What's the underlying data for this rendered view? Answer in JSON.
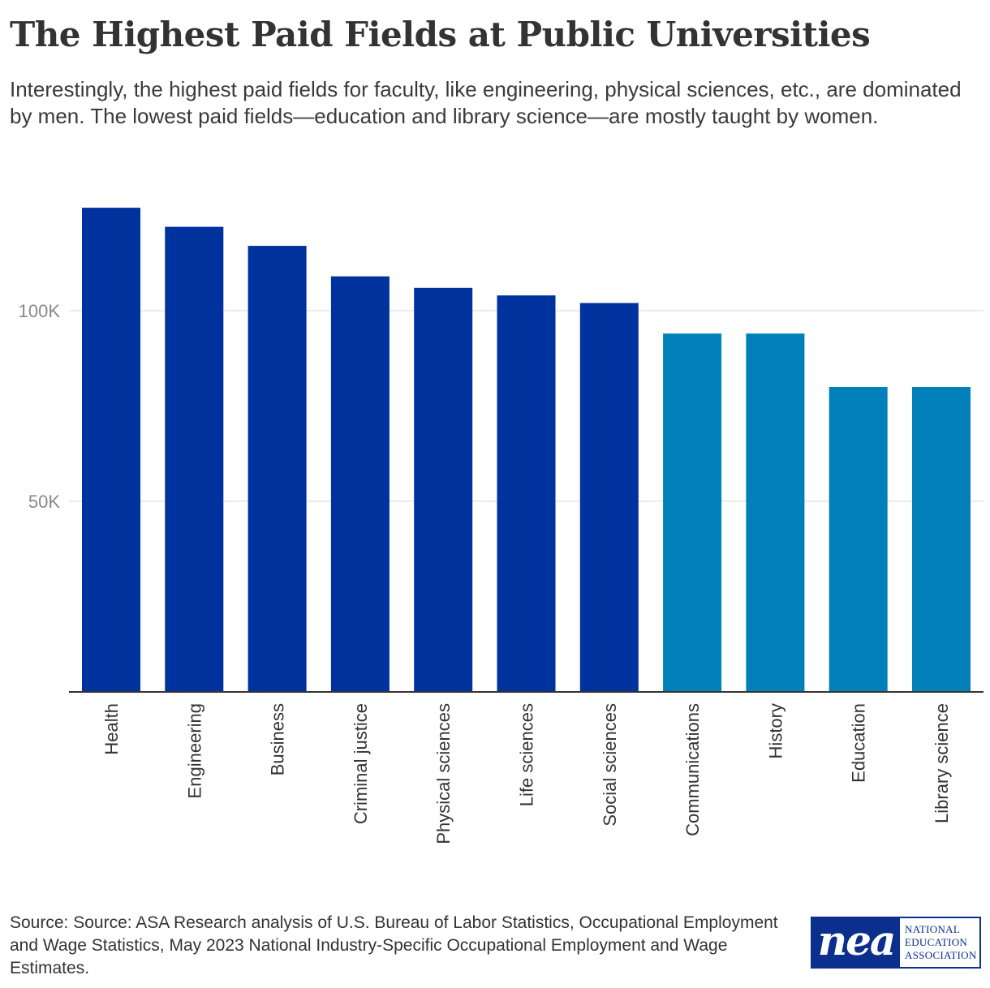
{
  "title": "The Highest Paid Fields at Public Universities",
  "subtitle": "Interestingly, the highest paid fields for faculty, like engineering, physical sciences, etc., are dominated by men. The lowest paid fields—education and library science—are mostly taught by women.",
  "source": "Source: Source: ASA Research analysis of U.S. Bureau of Labor Statistics, Occupational Employment and Wage Statistics, May 2023 National Industry-Specific Occupational Employment and Wage Estimates.",
  "logo": {
    "mark": "nea",
    "line1": "NATIONAL",
    "line2": "EDUCATION",
    "line3": "ASSOCIATION"
  },
  "colors": {
    "male_dominated": "#00329e",
    "female_dominated": "#0280ba",
    "grid": "#e6e6e6",
    "axis": "#333333"
  },
  "chart_data": {
    "type": "bar",
    "title": "The Highest Paid Fields at Public Universities",
    "xlabel": "",
    "ylabel": "",
    "ylim": [
      0,
      135000
    ],
    "grid": true,
    "yticks": [
      {
        "value": 50000,
        "label": "50K"
      },
      {
        "value": 100000,
        "label": "100K"
      }
    ],
    "categories": [
      "Health",
      "Engineering",
      "Business",
      "Criminal justice",
      "Physical sciences",
      "Life sciences",
      "Social sciences",
      "Communications",
      "History",
      "Education",
      "Library science"
    ],
    "values": [
      127000,
      122000,
      117000,
      109000,
      106000,
      104000,
      102000,
      94000,
      94000,
      80000,
      80000
    ],
    "groups": [
      "male_dominated",
      "male_dominated",
      "male_dominated",
      "male_dominated",
      "male_dominated",
      "male_dominated",
      "male_dominated",
      "female_dominated",
      "female_dominated",
      "female_dominated",
      "female_dominated"
    ]
  }
}
